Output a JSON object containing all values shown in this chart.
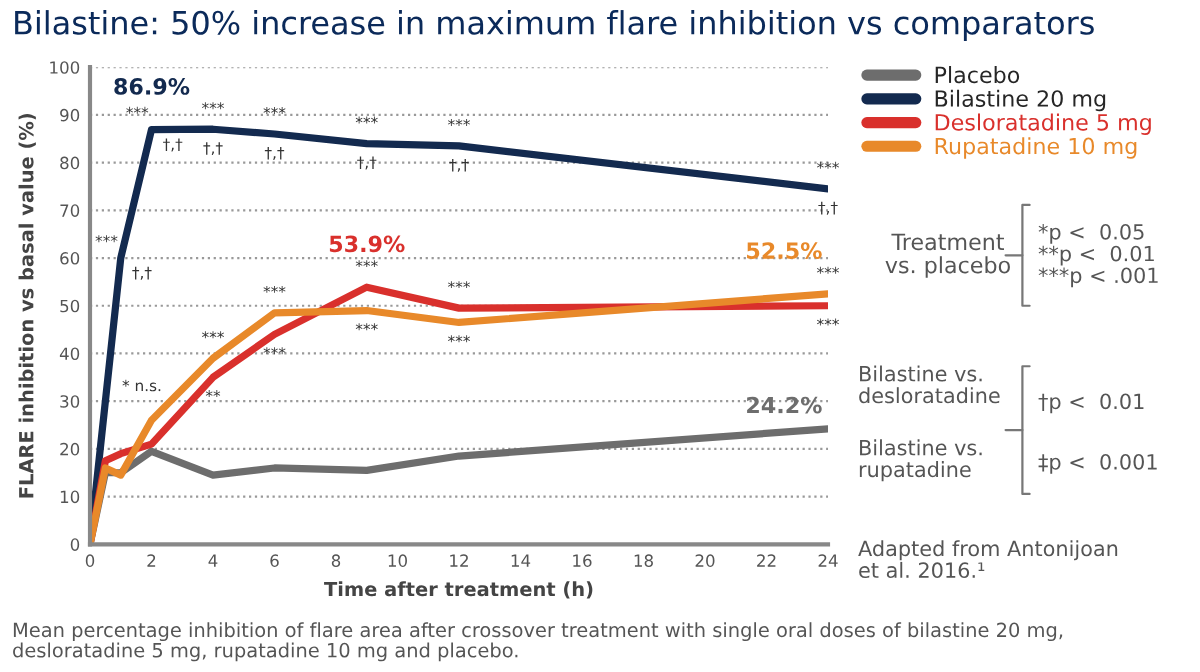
{
  "chart_data": {
    "type": "line",
    "title": "Bilastine: 50% increase in maximum flare inhibition vs comparators",
    "xlabel": "Time after treatment (h)",
    "ylabel": "FLARE inhibition vs basal value (%)",
    "x": [
      0,
      0.5,
      1,
      2,
      4,
      6,
      9,
      12,
      24
    ],
    "series": [
      {
        "name": "Placebo",
        "color": "#6d6d6d",
        "values": [
          0,
          15,
          15,
          19.5,
          14.5,
          16,
          15.5,
          18.5,
          24.2
        ]
      },
      {
        "name": "Bilastine 20 mg",
        "color": "#132a4f",
        "x": [
          0,
          1,
          2,
          4,
          6,
          9,
          12,
          24
        ],
        "values": [
          0,
          60,
          86.9,
          87,
          86,
          84,
          83.5,
          74.5
        ]
      },
      {
        "name": "Desloratadine 5 mg",
        "color": "#d9302c",
        "values": [
          0,
          17.5,
          19,
          21,
          35,
          44,
          53.9,
          49.5,
          50
        ]
      },
      {
        "name": "Rupatadine 10 mg",
        "color": "#e8892a",
        "values": [
          0,
          16,
          14.5,
          26,
          39,
          48.5,
          49,
          46.5,
          52.5
        ]
      }
    ],
    "xlim": [
      0,
      24
    ],
    "xticks": [
      0,
      2,
      4,
      6,
      8,
      10,
      12,
      14,
      16,
      18,
      20,
      22,
      24
    ],
    "ylim": [
      0,
      100
    ],
    "yticks": [
      0,
      10,
      20,
      30,
      40,
      50,
      60,
      70,
      80,
      90,
      100
    ],
    "grid": "y",
    "legend": "right",
    "marker": "none",
    "line_style": "solid",
    "annotations": [
      {
        "text": "86.9%",
        "x": 2,
        "y": 86.9
      },
      {
        "text": "53.9%",
        "x": 9,
        "y": 53.9
      },
      {
        "text": "52.5%",
        "x": 24,
        "y": 52.5
      },
      {
        "text": "24.2%",
        "x": 24,
        "y": 24.2
      },
      {
        "text": "***",
        "x": 1,
        "y": 60
      },
      {
        "text": "†,†",
        "x": 1,
        "y": 60
      },
      {
        "text": "***",
        "x": 2,
        "y": 86.9
      },
      {
        "text": "†,†",
        "x": 2,
        "y": 86.9
      },
      {
        "text": "***",
        "x": 4,
        "y": 87
      },
      {
        "text": "†,†",
        "x": 4,
        "y": 87
      },
      {
        "text": "***",
        "x": 6,
        "y": 86
      },
      {
        "text": "†,†",
        "x": 6,
        "y": 86
      },
      {
        "text": "***",
        "x": 9,
        "y": 84
      },
      {
        "text": "†,†",
        "x": 9,
        "y": 84
      },
      {
        "text": "***",
        "x": 12,
        "y": 83.5
      },
      {
        "text": "†,†",
        "x": 12,
        "y": 83.5
      },
      {
        "text": "***",
        "x": 24,
        "y": 74.5
      },
      {
        "text": "†,†",
        "x": 24,
        "y": 74.5
      },
      {
        "text": "* n.s.",
        "x": 0.5,
        "y": 33
      },
      {
        "text": "***",
        "x": 4,
        "y": 39
      },
      {
        "text": "**",
        "x": 4,
        "y": 35
      },
      {
        "text": "***",
        "x": 6,
        "y": 48.5
      },
      {
        "text": "***",
        "x": 6,
        "y": 44
      },
      {
        "text": "***",
        "x": 9,
        "y": 53.9
      },
      {
        "text": "***",
        "x": 9,
        "y": 49
      },
      {
        "text": "***",
        "x": 12,
        "y": 49.5
      },
      {
        "text": "***",
        "x": 12,
        "y": 46.5
      },
      {
        "text": "***",
        "x": 24,
        "y": 52.5
      },
      {
        "text": "***",
        "x": 24,
        "y": 50
      },
      "Treatment\nvs. placebo",
      "*p <  0.05\n**p <  0.01\n***p < .001",
      "Bilastine vs.\ndesloratadine",
      "Bilastine vs.\nrupatadine",
      "†p <  0.01",
      "‡p <  0.001",
      "Adapted from Antonijoan\net al. 2016.¹",
      "Mean percentage inhibition of flare area after crossover treatment with single oral doses of bilastine 20 mg, desloratadine 5 mg, rupatadine 10 mg and placebo."
    ]
  }
}
